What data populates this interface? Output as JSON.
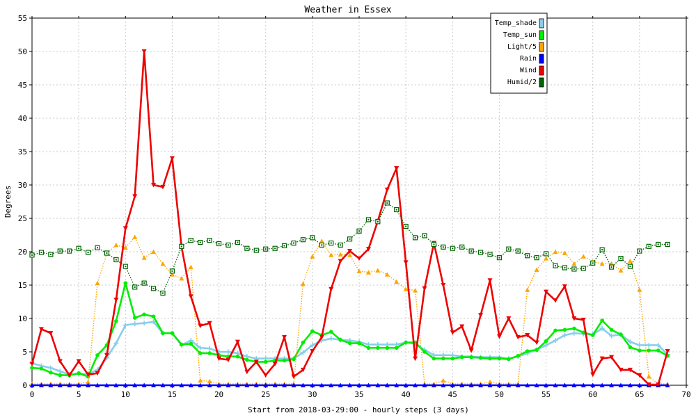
{
  "chart_data": {
    "type": "line",
    "title": "Weather in Essex",
    "xlabel": "Start from 2018-03-29:00 - hourly steps (3 days)",
    "ylabel": "Degrees",
    "xlim": [
      0,
      70
    ],
    "ylim": [
      0,
      55
    ],
    "xticks": [
      0,
      5,
      10,
      15,
      20,
      25,
      30,
      35,
      40,
      45,
      50,
      55,
      60,
      65,
      70
    ],
    "yticks": [
      0,
      5,
      10,
      15,
      20,
      25,
      30,
      35,
      40,
      45,
      50,
      55
    ],
    "grid": true,
    "legend_position": "top-right",
    "x": [
      0,
      1,
      2,
      3,
      4,
      5,
      6,
      7,
      8,
      9,
      10,
      11,
      12,
      13,
      14,
      15,
      16,
      17,
      18,
      19,
      20,
      21,
      22,
      23,
      24,
      25,
      26,
      27,
      28,
      29,
      30,
      31,
      32,
      33,
      34,
      35,
      36,
      37,
      38,
      39,
      40,
      41,
      42,
      43,
      44,
      45,
      46,
      47,
      48,
      49,
      50,
      51,
      52,
      53,
      54,
      55,
      56,
      57,
      58,
      59,
      60,
      61,
      62,
      63,
      64,
      65,
      66,
      67,
      68
    ],
    "series": [
      {
        "name": "Temp_shade",
        "color": "#87ceeb",
        "style": "solid",
        "marker": "cross",
        "values": [
          3.3,
          2.9,
          2.6,
          2.1,
          1.6,
          1.7,
          1.7,
          2.3,
          4.1,
          6.3,
          9.0,
          9.2,
          9.3,
          9.5,
          7.8,
          7.8,
          6.0,
          6.7,
          5.6,
          5.5,
          5.0,
          5.0,
          4.8,
          4.3,
          4.0,
          4.0,
          4.0,
          4.0,
          4.0,
          4.9,
          6.0,
          6.7,
          7.0,
          6.8,
          6.7,
          6.5,
          6.1,
          6.1,
          6.1,
          6.1,
          6.4,
          6.2,
          5.3,
          4.5,
          4.5,
          4.5,
          4.3,
          4.3,
          4.2,
          4.2,
          4.2,
          4.0,
          4.3,
          4.8,
          5.3,
          6.0,
          6.7,
          7.5,
          7.8,
          7.7,
          7.6,
          8.5,
          7.4,
          7.6,
          6.5,
          6.0,
          6.0,
          6.0,
          4.6
        ]
      },
      {
        "name": "Temp_sun",
        "color": "#00ee00",
        "style": "solid",
        "marker": "circle",
        "values": [
          2.6,
          2.5,
          1.9,
          1.5,
          1.5,
          1.8,
          1.3,
          4.5,
          6.0,
          9.6,
          15.3,
          10.1,
          10.6,
          10.3,
          7.8,
          7.8,
          6.1,
          6.2,
          4.8,
          4.8,
          4.5,
          4.3,
          4.3,
          3.8,
          3.5,
          3.5,
          3.7,
          3.7,
          3.9,
          6.4,
          8.1,
          7.5,
          8.0,
          6.8,
          6.3,
          6.3,
          5.6,
          5.6,
          5.6,
          5.6,
          6.4,
          6.4,
          5.0,
          4.0,
          4.0,
          4.0,
          4.2,
          4.2,
          4.1,
          4.0,
          4.0,
          3.9,
          4.4,
          5.1,
          5.3,
          6.6,
          8.2,
          8.3,
          8.5,
          7.9,
          7.5,
          9.7,
          8.3,
          7.6,
          5.7,
          5.2,
          5.2,
          5.2,
          4.4
        ]
      },
      {
        "name": "Light/5",
        "color": "#ffa500",
        "style": "dotted",
        "marker": "triangle-up",
        "values": [
          0.2,
          0.2,
          0.2,
          0.2,
          0.2,
          0.2,
          0.5,
          15.3,
          19.7,
          21.0,
          20.6,
          22.2,
          19.1,
          20.0,
          18.2,
          16.6,
          16.0,
          17.7,
          0.7,
          0.6,
          0.2,
          0.2,
          0.2,
          0.2,
          0.2,
          0.2,
          0.2,
          0.2,
          0.2,
          15.2,
          19.3,
          21.6,
          19.5,
          19.6,
          19.5,
          17.1,
          16.9,
          17.2,
          16.6,
          15.5,
          14.4,
          14.2,
          0.2,
          0.2,
          0.7,
          0.2,
          0.2,
          0.2,
          0.2,
          0.5,
          0.2,
          0.2,
          0.2,
          14.3,
          17.3,
          19.0,
          20.0,
          19.8,
          18.2,
          19.3,
          18.5,
          18.2,
          18.2,
          17.2,
          18.6,
          14.3,
          1.3,
          0.2,
          0.2
        ]
      },
      {
        "name": "Rain",
        "color": "#0000ff",
        "style": "solid",
        "marker": "triangle-up",
        "values": [
          0,
          0,
          0,
          0,
          0,
          0,
          0,
          0,
          0,
          0,
          0,
          0,
          0,
          0,
          0,
          0,
          0,
          0,
          0,
          0,
          0,
          0,
          0,
          0,
          0,
          0,
          0,
          0,
          0,
          0,
          0,
          0,
          0,
          0,
          0,
          0,
          0,
          0,
          0,
          0,
          0,
          0,
          0,
          0,
          0,
          0,
          0,
          0,
          0,
          0,
          0,
          0,
          0,
          0,
          0,
          0,
          0,
          0,
          0,
          0,
          0,
          0,
          0,
          0,
          0,
          0,
          0,
          0,
          0
        ]
      },
      {
        "name": "Wind",
        "color": "#ee0000",
        "style": "solid",
        "marker": "triangle-down",
        "values": [
          3.2,
          8.4,
          7.8,
          3.6,
          1.5,
          3.6,
          1.6,
          1.8,
          4.5,
          12.8,
          23.5,
          28.3,
          50.0,
          30.0,
          29.7,
          34.0,
          20.7,
          13.3,
          8.9,
          9.3,
          4.0,
          3.8,
          6.5,
          2.0,
          3.5,
          1.5,
          3.2,
          7.2,
          1.3,
          2.3,
          5.1,
          7.2,
          14.4,
          18.6,
          20.1,
          19.0,
          20.4,
          24.6,
          29.3,
          32.5,
          18.4,
          4.0,
          14.5,
          21.3,
          15.0,
          7.9,
          8.8,
          5.2,
          10.5,
          15.7,
          7.3,
          10.0,
          7.2,
          7.5,
          6.4,
          14.0,
          12.7,
          14.8,
          10.0,
          9.8,
          1.6,
          4.0,
          4.2,
          2.3,
          2.3,
          1.5,
          0.1,
          0.1,
          5.1
        ]
      },
      {
        "name": "Humid/2",
        "color": "#006400",
        "style": "dotted",
        "marker": "square",
        "values": [
          19.5,
          19.9,
          19.6,
          20.1,
          20.1,
          20.5,
          19.9,
          20.6,
          19.8,
          18.8,
          17.8,
          14.7,
          15.3,
          14.5,
          13.8,
          17.1,
          20.8,
          21.7,
          21.4,
          21.7,
          21.2,
          21.0,
          21.4,
          20.5,
          20.2,
          20.4,
          20.5,
          20.9,
          21.3,
          21.8,
          22.1,
          21.0,
          21.3,
          21.0,
          21.9,
          23.1,
          24.8,
          24.5,
          27.3,
          26.3,
          23.8,
          22.1,
          22.4,
          21.1,
          20.7,
          20.5,
          20.7,
          20.1,
          19.9,
          19.6,
          19.1,
          20.4,
          20.1,
          19.4,
          19.1,
          19.7,
          17.9,
          17.6,
          17.4,
          17.5,
          18.3,
          20.3,
          17.7,
          19.0,
          17.8,
          20.1,
          20.8,
          21.1,
          21.1
        ]
      }
    ]
  }
}
